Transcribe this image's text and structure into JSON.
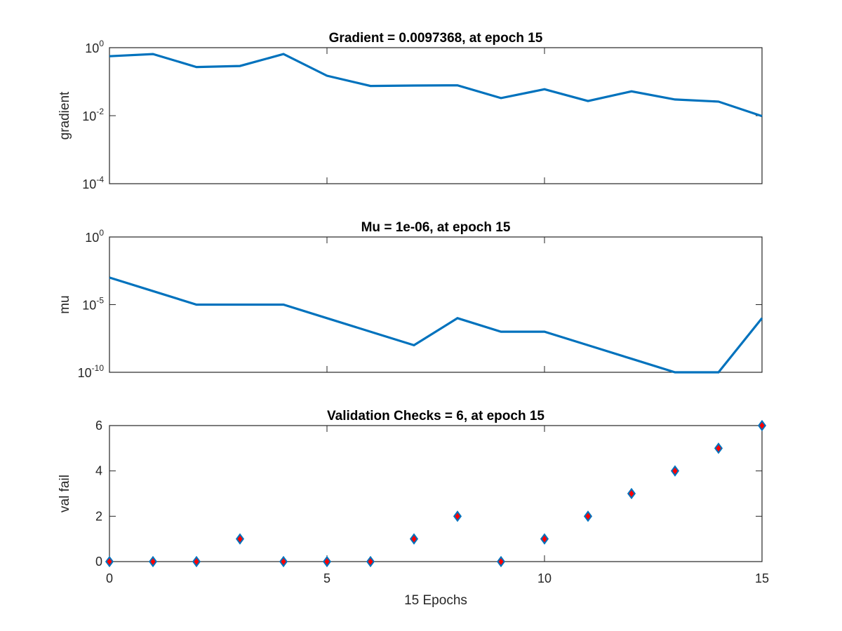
{
  "chart_data": [
    {
      "type": "line",
      "title": "Gradient = 0.0097368, at epoch 15",
      "xlabel": "",
      "ylabel": "gradient",
      "yscale": "log",
      "xlim": [
        0,
        15
      ],
      "ylim": [
        0.0001,
        1
      ],
      "xticks": [
        0,
        5,
        10,
        15
      ],
      "xtick_labels_shown": false,
      "yticks": [
        {
          "value": 1,
          "base": "10",
          "exp": "0"
        },
        {
          "value": 0.01,
          "base": "10",
          "exp": "-2"
        },
        {
          "value": 0.0001,
          "base": "10",
          "exp": "-4"
        }
      ],
      "grid": false,
      "color": "#0072BD",
      "x": [
        0,
        1,
        2,
        3,
        4,
        5,
        6,
        7,
        8,
        9,
        10,
        11,
        12,
        13,
        14,
        15
      ],
      "y": [
        0.56,
        0.65,
        0.27,
        0.29,
        0.65,
        0.15,
        0.075,
        0.077,
        0.078,
        0.033,
        0.06,
        0.027,
        0.052,
        0.03,
        0.026,
        0.0097368
      ]
    },
    {
      "type": "line",
      "title": "Mu = 1e-06, at epoch 15",
      "xlabel": "",
      "ylabel": "mu",
      "yscale": "log",
      "xlim": [
        0,
        15
      ],
      "ylim": [
        1e-10,
        1
      ],
      "xticks": [
        0,
        5,
        10,
        15
      ],
      "xtick_labels_shown": false,
      "yticks": [
        {
          "value": 1,
          "base": "10",
          "exp": "0"
        },
        {
          "value": 1e-05,
          "base": "10",
          "exp": "-5"
        },
        {
          "value": 1e-10,
          "base": "10",
          "exp": "-10"
        }
      ],
      "grid": false,
      "color": "#0072BD",
      "x": [
        0,
        1,
        2,
        3,
        4,
        5,
        6,
        7,
        8,
        9,
        10,
        11,
        12,
        13,
        14,
        15
      ],
      "y": [
        0.001,
        0.0001,
        1e-05,
        1e-05,
        1e-05,
        1e-06,
        1e-07,
        1e-08,
        1e-06,
        1e-07,
        1e-07,
        1e-08,
        1e-09,
        1e-10,
        1e-10,
        1e-06
      ]
    },
    {
      "type": "scatter",
      "title": "Validation Checks = 6, at epoch 15",
      "xlabel": "15 Epochs",
      "ylabel": "val fail",
      "yscale": "linear",
      "xlim": [
        0,
        15
      ],
      "ylim": [
        0,
        6
      ],
      "xticks": [
        0,
        5,
        10,
        15
      ],
      "xtick_labels": [
        "0",
        "5",
        "10",
        "15"
      ],
      "yticks": [
        0,
        2,
        4,
        6
      ],
      "ytick_labels": [
        "0",
        "2",
        "4",
        "6"
      ],
      "grid": false,
      "marker": "diamond",
      "marker_edge_color": "#0072BD",
      "marker_face_color": "#FF0000",
      "x": [
        0,
        1,
        2,
        3,
        4,
        5,
        6,
        7,
        8,
        9,
        10,
        11,
        12,
        13,
        14,
        15
      ],
      "y": [
        0,
        0,
        0,
        1,
        0,
        0,
        0,
        1,
        2,
        0,
        1,
        2,
        3,
        4,
        5,
        6
      ]
    }
  ]
}
